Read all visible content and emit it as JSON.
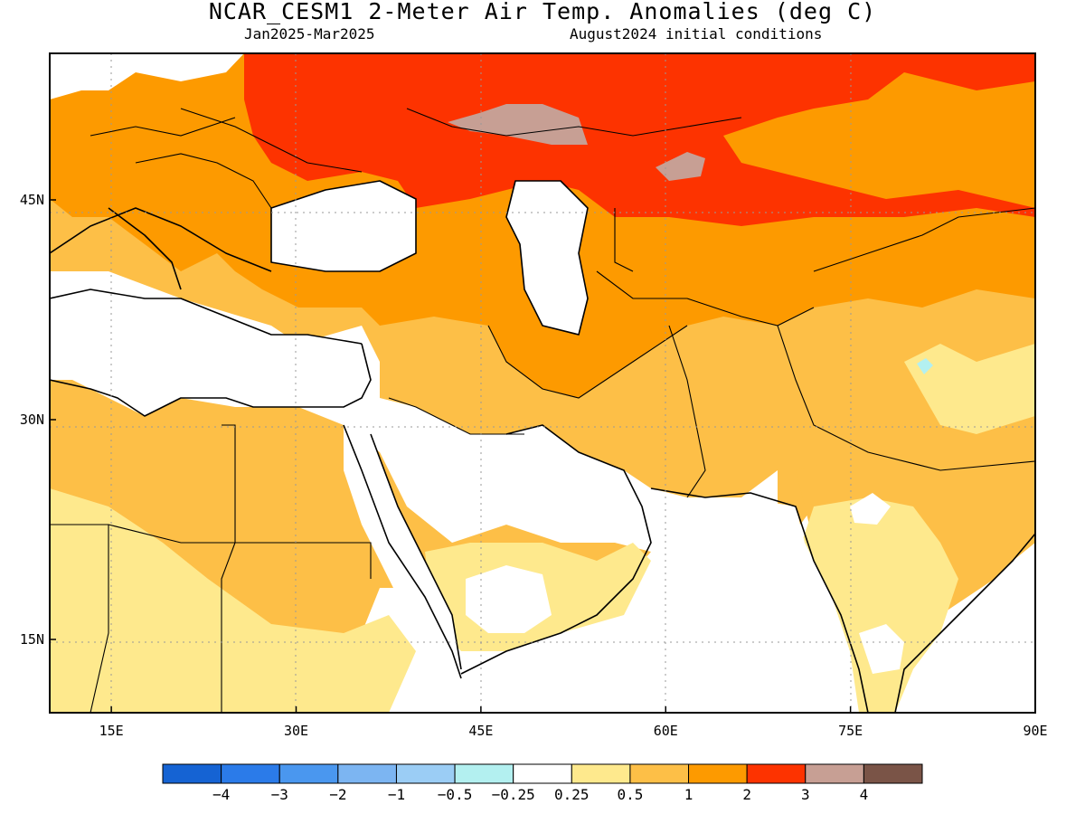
{
  "title": "NCAR_CESM1 2-Meter Air Temp. Anomalies (deg C)",
  "subtitle_left": "Jan2025-Mar2025",
  "subtitle_right": "August2024 initial conditions",
  "map": {
    "lon_range": [
      10,
      90
    ],
    "lat_range": [
      10,
      55
    ],
    "lon_ticks": [
      {
        "value": 15,
        "label": "15E"
      },
      {
        "value": 30,
        "label": "30E"
      },
      {
        "value": 45,
        "label": "45E"
      },
      {
        "value": 60,
        "label": "60E"
      },
      {
        "value": 75,
        "label": "75E"
      },
      {
        "value": 90,
        "label": "90E"
      }
    ],
    "lat_ticks": [
      {
        "value": 45,
        "label": "45N"
      },
      {
        "value": 30,
        "label": "30N"
      },
      {
        "value": 15,
        "label": "15N"
      }
    ]
  },
  "colorbar": {
    "colors": [
      "#1563d3",
      "#2b7be9",
      "#4a97ef",
      "#7cb5f2",
      "#9bcdf5",
      "#b3f0f0",
      "#ffffff",
      "#fee98d",
      "#fdbf47",
      "#fd9a00",
      "#fd3300",
      "#c79f94",
      "#7a5447"
    ],
    "labels": [
      "−4",
      "−3",
      "−2",
      "−1",
      "−0.5",
      "−0.25",
      "0.25",
      "0.5",
      "1",
      "2",
      "3",
      "4"
    ]
  },
  "colors": {
    "anom_0_5_1": "#fee98d",
    "anom_1_2": "#fdbf47",
    "anom_2_3": "#fd9a00",
    "anom_3_4": "#fd3300",
    "anom_4_plus": "#c79f94",
    "anom_neg": "#b3f0f0"
  }
}
